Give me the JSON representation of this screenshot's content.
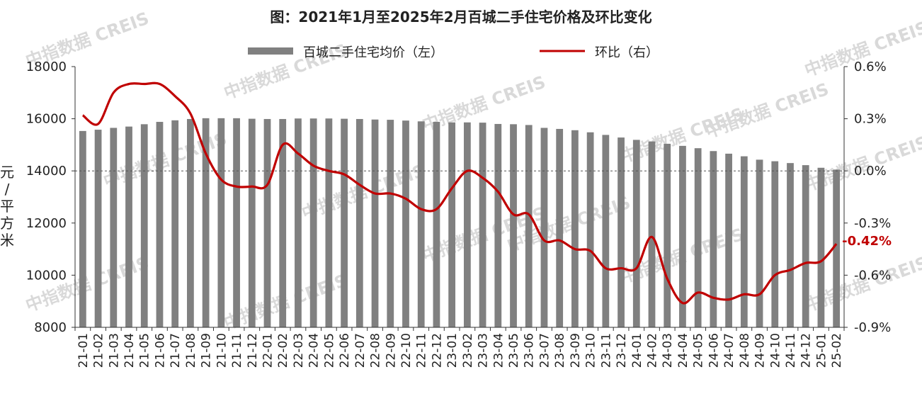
{
  "chart_data": {
    "type": "bar",
    "title": "图：2021年1月至2025年2月百城二手住宅价格及环比变化",
    "ylabel": "元/平方米",
    "ylim": [
      8000,
      18000
    ],
    "y2lim": [
      -0.9,
      0.6
    ],
    "yticks": [
      "8000",
      "10000",
      "12000",
      "14000",
      "16000",
      "18000"
    ],
    "y2ticks": [
      "-0.9%",
      "-0.6%",
      "-0.3%",
      "0.0%",
      "0.3%",
      "0.6%"
    ],
    "legend_position": "top",
    "categories": [
      "21-01",
      "21-02",
      "21-03",
      "21-04",
      "21-05",
      "21-06",
      "21-07",
      "21-08",
      "21-09",
      "21-10",
      "21-11",
      "21-12",
      "22-01",
      "22-02",
      "22-03",
      "22-04",
      "22-05",
      "22-06",
      "22-07",
      "22-08",
      "22-09",
      "22-10",
      "22-11",
      "22-12",
      "23-01",
      "23-02",
      "23-03",
      "23-04",
      "23-05",
      "23-06",
      "23-07",
      "23-08",
      "23-09",
      "23-10",
      "23-11",
      "23-12",
      "24-01",
      "24-02",
      "24-03",
      "24-04",
      "24-05",
      "24-06",
      "24-07",
      "24-08",
      "24-09",
      "24-10",
      "24-11",
      "24-12",
      "25-01",
      "25-02"
    ],
    "series": [
      {
        "name": "百城二手住宅均价（左）",
        "kind": "bar",
        "axis": "left",
        "color": "#808080",
        "values": [
          15530,
          15580,
          15650,
          15700,
          15790,
          15880,
          15940,
          15990,
          16020,
          16020,
          16020,
          16000,
          15990,
          15990,
          16010,
          16010,
          16010,
          16000,
          15990,
          15970,
          15960,
          15930,
          15900,
          15880,
          15860,
          15860,
          15850,
          15800,
          15790,
          15760,
          15650,
          15610,
          15560,
          15480,
          15380,
          15280,
          15190,
          15130,
          15040,
          14960,
          14870,
          14760,
          14660,
          14560,
          14430,
          14370,
          14300,
          14220,
          14120,
          14050
        ]
      },
      {
        "name": "环比（右）",
        "kind": "line",
        "axis": "right",
        "color": "#c00000",
        "values": [
          0.32,
          0.27,
          0.45,
          0.5,
          0.5,
          0.5,
          0.43,
          0.33,
          0.1,
          -0.05,
          -0.09,
          -0.09,
          -0.08,
          0.15,
          0.1,
          0.03,
          0.0,
          -0.02,
          -0.08,
          -0.13,
          -0.13,
          -0.16,
          -0.22,
          -0.22,
          -0.1,
          0.0,
          -0.04,
          -0.12,
          -0.25,
          -0.25,
          -0.4,
          -0.4,
          -0.45,
          -0.46,
          -0.56,
          -0.56,
          -0.56,
          -0.38,
          -0.62,
          -0.76,
          -0.7,
          -0.73,
          -0.74,
          -0.71,
          -0.71,
          -0.6,
          -0.57,
          -0.53,
          -0.52,
          -0.42
        ]
      }
    ],
    "annotation": "-0.42%",
    "watermark": "中指数据 CREIS"
  }
}
